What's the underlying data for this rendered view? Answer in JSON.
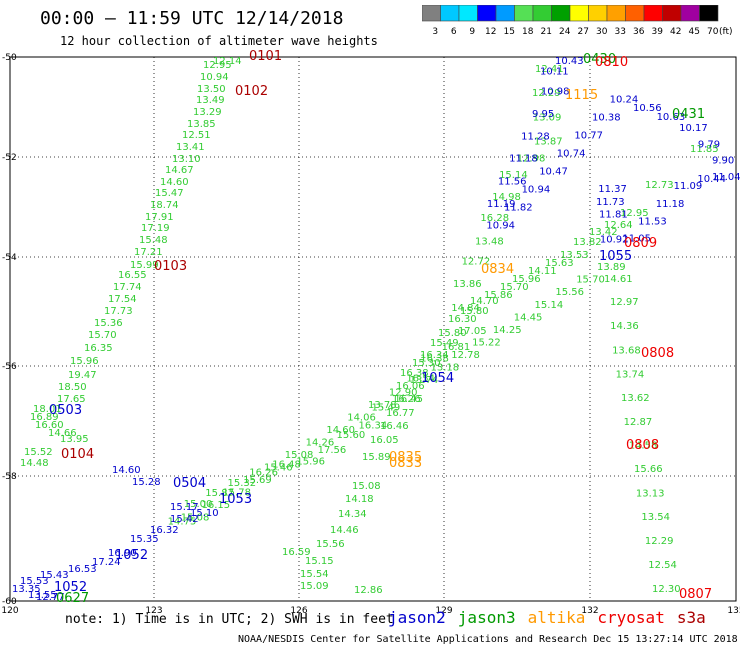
{
  "title": "00:00 – 11:59 UTC 12/14/2018",
  "subtitle": "12 hour collection of altimeter wave heights",
  "colorbar": {
    "unit": "(ft)",
    "labels": [
      "3",
      "6",
      "9",
      "12",
      "15",
      "18",
      "21",
      "24",
      "27",
      "30",
      "33",
      "36",
      "39",
      "42",
      "45",
      "70"
    ],
    "colors": [
      "#808080",
      "#00c8ff",
      "#00e8ff",
      "#0000ff",
      "#009bff",
      "#55e055",
      "#33cc33",
      "#00a000",
      "#ffff00",
      "#ffd000",
      "#ffa000",
      "#ff6000",
      "#ff0000",
      "#c00000",
      "#a000a0",
      "#000000"
    ]
  },
  "axes": {
    "lon_labels": [
      "120",
      "123",
      "126",
      "129",
      "132",
      "135"
    ],
    "lat_labels": [
      "-50",
      "-52",
      "-54",
      "-56",
      "-58",
      "-60"
    ]
  },
  "note": "note: 1) Time is in UTC; 2) SWH is in feet",
  "legend": [
    {
      "name": "jason2",
      "color": "#0000cc"
    },
    {
      "name": "jason3",
      "color": "#009900"
    },
    {
      "name": "altika",
      "color": "#ff9900"
    },
    {
      "name": "cryosat",
      "color": "#ee0000"
    },
    {
      "name": "s3a",
      "color": "#aa0000"
    }
  ],
  "credit": "NOAA/NESDIS Center for Satellite Applications and Research  Dec 15 13:27:14 UTC 2018",
  "time_labels": [
    {
      "text": "0101",
      "color": "#aa0000"
    },
    {
      "text": "0102",
      "color": "#aa0000"
    },
    {
      "text": "0103",
      "color": "#aa0000"
    },
    {
      "text": "0104",
      "color": "#aa0000"
    },
    {
      "text": "0503",
      "color": "#0000cc"
    },
    {
      "text": "0504",
      "color": "#0000cc"
    },
    {
      "text": "1052",
      "color": "#0000cc"
    },
    {
      "text": "1052",
      "color": "#0000cc"
    },
    {
      "text": "1053",
      "color": "#0000cc"
    },
    {
      "text": "1054",
      "color": "#0000cc"
    },
    {
      "text": "1055",
      "color": "#0000cc"
    },
    {
      "text": "0627",
      "color": "#009900"
    },
    {
      "text": "0431",
      "color": "#009900"
    },
    {
      "text": "0430",
      "color": "#009900"
    },
    {
      "text": "0834",
      "color": "#ff9900"
    },
    {
      "text": "0835",
      "color": "#ff9900"
    },
    {
      "text": "0833",
      "color": "#ff9900"
    },
    {
      "text": "1115",
      "color": "#ff9900"
    },
    {
      "text": "0809",
      "color": "#ee0000"
    },
    {
      "text": "0808",
      "color": "#ee0000"
    },
    {
      "text": "0808",
      "color": "#ee0000"
    },
    {
      "text": "0807",
      "color": "#ee0000"
    },
    {
      "text": "0810",
      "color": "#ee0000"
    }
  ],
  "tracks": [
    {
      "name": "s3a-0101-track",
      "color": "#33cc33",
      "values": [
        "12.14",
        "12.95",
        "10.94",
        "13.50",
        "13.49",
        "13.29",
        "13.85",
        "12.51",
        "13.41",
        "13.10",
        "14.67",
        "14.60",
        "15.47",
        "18.74",
        "17.91",
        "17.19",
        "15.48",
        "17.21",
        "15.99",
        "16.55",
        "17.74",
        "17.54",
        "17.73",
        "15.36",
        "15.70",
        "16.35",
        "15.96",
        "19.47",
        "18.50",
        "17.65",
        "18.01",
        "16.89",
        "16.60",
        "14.66",
        "13.95",
        "15.52",
        "14.48"
      ]
    },
    {
      "name": "jason3-0627-track",
      "color": "#33cc33",
      "values": [
        "12.86",
        "15.09",
        "15.54",
        "15.15",
        "16.59",
        "15.56",
        "14.46",
        "14.34",
        "14.18",
        "15.08",
        "15.89",
        "16.05",
        "16.46",
        "16.77",
        "16.26",
        "16.06",
        "16.38",
        "15.30",
        "16.34",
        "15.49",
        "15.80",
        "16.30",
        "15.80",
        "14.70",
        "15.86",
        "15.70",
        "15.96",
        "14.11",
        "15.63",
        "13.53",
        "13.82",
        "13.42",
        "12.64",
        "12.95",
        "12.73",
        "11.85"
      ]
    },
    {
      "name": "jason3-0430-track",
      "color": "#33cc33",
      "values": [
        "12.41",
        "12.29",
        "13.09",
        "13.87",
        "12.98",
        "15.14",
        "14.98",
        "16.28",
        "13.48",
        "12.72",
        "13.86",
        "14.84",
        "17.05",
        "16.81",
        "16.38",
        "16.54",
        "16.45",
        "15.49",
        "16.34",
        "15.60",
        "17.56",
        "15.96",
        "16.48",
        "16.26",
        "15.32",
        "15.87",
        "15.00",
        "14.75",
        "15.08",
        "16.15",
        "15.78",
        "15.69",
        "15.46",
        "15.08",
        "14.26",
        "14.60",
        "14.06",
        "13.78",
        "12.90",
        "13.74",
        "13.18",
        "12.78",
        "15.22",
        "14.25",
        "14.45",
        "15.14",
        "15.56",
        "15.70",
        "13.89",
        "14.61",
        "12.97",
        "14.36",
        "13.68",
        "13.74",
        "13.62",
        "12.87",
        "14.58",
        "15.66",
        "13.13",
        "13.54",
        "12.29",
        "12.54",
        "12.30"
      ]
    },
    {
      "name": "jason2-1055-track",
      "color": "#0000cc",
      "values": [
        "10.43",
        "10.11",
        "10.98",
        "9.95",
        "11.28",
        "11.18",
        "11.56",
        "11.19",
        "10.94",
        "11.82",
        "10.94",
        "10.47",
        "10.74",
        "10.77",
        "10.38",
        "10.24",
        "10.56",
        "10.63",
        "10.17",
        "9.79",
        "9.90",
        "11.04",
        "10.44",
        "11.09",
        "11.18",
        "11.53",
        "11.05",
        "10.92",
        "11.81",
        "11.37",
        "11.73"
      ]
    },
    {
      "name": "jason2-0503-track",
      "color": "#0000cc",
      "values": [
        "14.60",
        "15.28",
        "15.17",
        "15.10",
        "15.42",
        "16.32",
        "15.35",
        "16.90",
        "17.24",
        "16.53",
        "15.43",
        "15.53",
        "13.35",
        "13.55",
        "12.77"
      ]
    }
  ]
}
